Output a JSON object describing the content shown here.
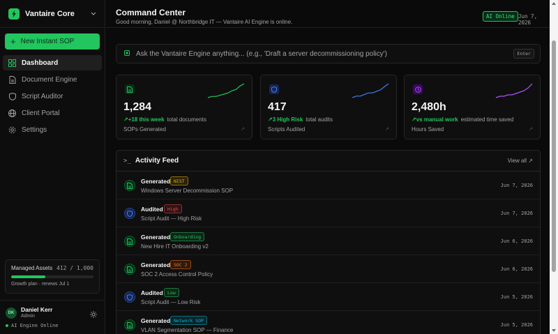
{
  "brand": {
    "name": "Vantaire Core",
    "logo_icon": "bolt-icon",
    "chevron_icon": "chevron-down-icon"
  },
  "sidebar": {
    "new_button": "New Instant SOP",
    "items": [
      {
        "label": "Dashboard",
        "icon": "grid-icon",
        "active": true
      },
      {
        "label": "Document Engine",
        "icon": "document-icon",
        "active": false
      },
      {
        "label": "Script Auditor",
        "icon": "shield-icon",
        "active": false
      },
      {
        "label": "Client Portal",
        "icon": "globe-icon",
        "active": false
      },
      {
        "label": "Settings",
        "icon": "gear-icon",
        "active": false
      }
    ],
    "assets": {
      "title": "Managed Assets",
      "count": "412 / 1,000",
      "fill_fraction": 0.412,
      "plan": "Growth plan · renews Jul 1"
    },
    "user": {
      "initials": "DK",
      "name": "Daniel Kerr",
      "role": "Admin",
      "status": "AI Engine Online"
    }
  },
  "header": {
    "title": "Command Center",
    "greeting": "Good morning, Daniel @ Northbridge IT — Vantaire AI Engine is online.",
    "badge": "AI Online",
    "date": "Jun 7, 2026"
  },
  "ask": {
    "placeholder": "Ask the Vantaire Engine anything... (e.g., 'Draft a server decommissioning policy')",
    "key_hint": "Enter"
  },
  "cards": [
    {
      "value": "1,284",
      "trend": "+18 this week",
      "trend_rest": "total documents",
      "label": "SOPs Generated",
      "icon": "document-icon",
      "color": "#22c55e",
      "bg": "#052e16",
      "spark": [
        2,
        3,
        3,
        4,
        5,
        6,
        8,
        9,
        12,
        14
      ]
    },
    {
      "value": "417",
      "trend": "3 High Risk",
      "trend_rest": "total audits",
      "label": "Scripts Audited",
      "icon": "shield-icon",
      "color": "#3b82f6",
      "bg": "#172554",
      "spark": [
        3,
        4,
        4,
        5,
        6,
        6,
        7,
        8,
        10,
        12
      ]
    },
    {
      "value": "2,480h",
      "trend": "vs manual work",
      "trend_rest": "estimated time saved",
      "label": "Hours Saved",
      "icon": "clock-icon",
      "color": "#a855f7",
      "bg": "#3b0764",
      "spark": [
        2,
        3,
        3,
        4,
        4,
        5,
        6,
        7,
        9,
        12
      ]
    }
  ],
  "feed": {
    "title": "Activity Feed",
    "view_all": "View all ↗",
    "rows": [
      {
        "action": "Generated",
        "badge": "NIST",
        "badge_color": "#eab308",
        "title": "Windows Server Decommission SOP",
        "date": "Jun 7, 2026",
        "icon": "document-icon",
        "icon_color": "#22c55e"
      },
      {
        "action": "Audited",
        "badge": "High",
        "badge_color": "#ef4444",
        "title": "Script Audit — High Risk",
        "date": "Jun 7, 2026",
        "icon": "shield-icon",
        "icon_color": "#3b82f6"
      },
      {
        "action": "Generated",
        "badge": "Onboarding",
        "badge_color": "#22c55e",
        "title": "New Hire IT Onboarding v2",
        "date": "Jun 6, 2026",
        "icon": "document-icon",
        "icon_color": "#22c55e"
      },
      {
        "action": "Generated",
        "badge": "SOC 2",
        "badge_color": "#f97316",
        "title": "SOC 2 Access Control Policy",
        "date": "Jun 6, 2026",
        "icon": "document-icon",
        "icon_color": "#22c55e"
      },
      {
        "action": "Audited",
        "badge": "Low",
        "badge_color": "#22c55e",
        "title": "Script Audit — Low Risk",
        "date": "Jun 5, 2026",
        "icon": "shield-icon",
        "icon_color": "#3b82f6"
      },
      {
        "action": "Generated",
        "badge": "Network SOP",
        "badge_color": "#06b6d4",
        "title": "VLAN Segmentation SOP — Finance",
        "date": "Jun 5, 2026",
        "icon": "document-icon",
        "icon_color": "#22c55e"
      }
    ]
  }
}
